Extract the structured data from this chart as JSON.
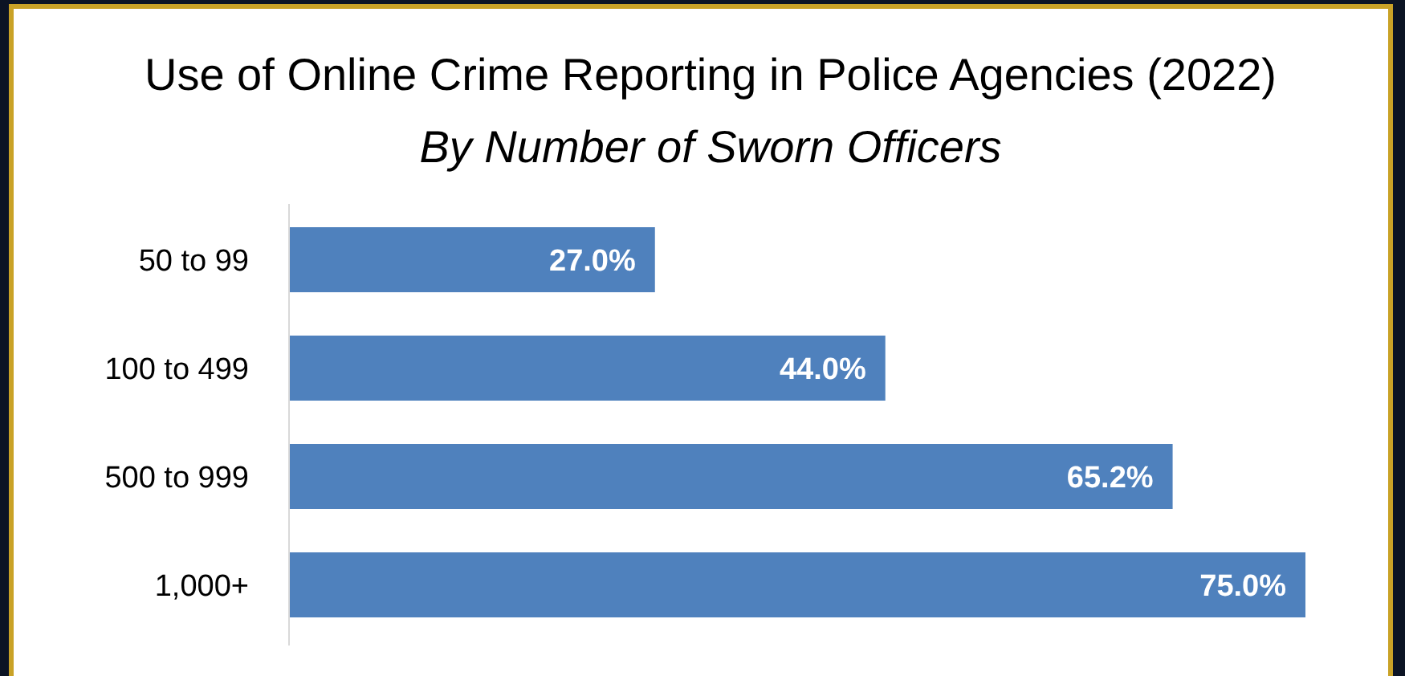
{
  "chart_data": {
    "type": "bar",
    "orientation": "horizontal",
    "title": "Use of Online Crime Reporting in Police Agencies (2022)",
    "subtitle": "By Number of Sworn Officers",
    "categories": [
      "50 to 99",
      "100 to 499",
      "500 to 999",
      "1,000+"
    ],
    "values": [
      27.0,
      44.0,
      65.2,
      75.0
    ],
    "value_labels": [
      "27.0%",
      "44.0%",
      "65.2%",
      "75.0%"
    ],
    "color": "#4f81bd"
  }
}
